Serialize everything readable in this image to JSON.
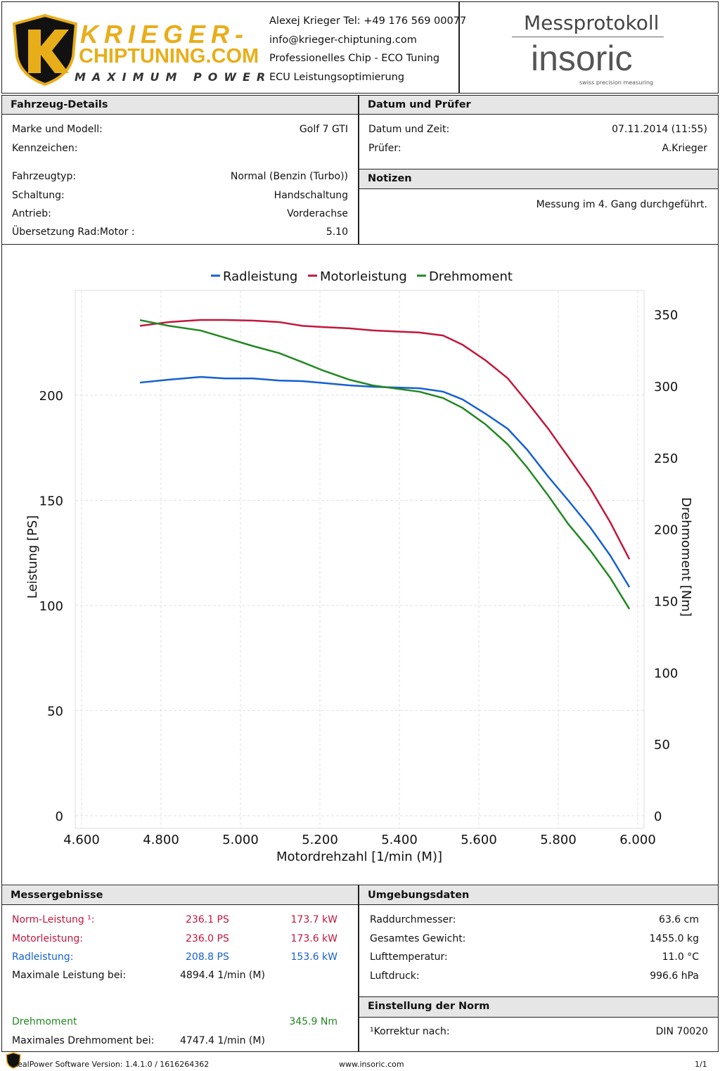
{
  "header": {
    "brand_line1": "KRIEGER-",
    "brand_line2": "CHIPTUNING.COM",
    "brand_slogan": "MAXIMUM POWER",
    "contact": [
      "Alexej Krieger Tel: +49 176 569 00077",
      "info@krieger-chiptuning.com",
      "Professionelles Chip - ECO Tuning",
      "ECU Leistungsoptimierung"
    ],
    "doc_title": "Messprotokoll",
    "vendor_logo": "insoric",
    "vendor_tagline": "swiss precision measuring"
  },
  "vehicle": {
    "title": "Fahrzeug-Details",
    "rows": [
      {
        "label": "Marke und Modell:",
        "value": "Golf 7 GTI"
      },
      {
        "label": "Kennzeichen:",
        "value": ""
      },
      {
        "label": "Fahrzeugtyp:",
        "value": "Normal (Benzin (Turbo))"
      },
      {
        "label": "Schaltung:",
        "value": "Handschaltung"
      },
      {
        "label": "Antrieb:",
        "value": "Vorderachse"
      },
      {
        "label": "Übersetzung Rad:Motor :",
        "value": "5.10"
      }
    ]
  },
  "date": {
    "title": "Datum und Prüfer",
    "rows": [
      {
        "label": "Datum und Zeit:",
        "value": "07.11.2014 (11:55)"
      },
      {
        "label": "Prüfer:",
        "value": "A.Krieger"
      }
    ]
  },
  "notes": {
    "title": "Notizen",
    "text": "Messung im 4. Gang durchgeführt."
  },
  "chart_data": {
    "type": "line",
    "xlabel": "Motordrehzahl [1/min (M)]",
    "ylabel": "Leistung [PS]",
    "y2label": "Drehmoment [Nm]",
    "xlim": [
      4600,
      6000
    ],
    "ylim": [
      0,
      255
    ],
    "y2lim": [
      0,
      372
    ],
    "xticks": [
      "4.600",
      "4.800",
      "5.000",
      "5.200",
      "5.400",
      "5.600",
      "5.800",
      "6.000"
    ],
    "xtick_values": [
      4600,
      4800,
      5000,
      5200,
      5400,
      5600,
      5800,
      6000
    ],
    "yticks": [
      0,
      50,
      100,
      150,
      200
    ],
    "y2ticks": [
      0,
      50,
      100,
      150,
      200,
      250,
      300,
      350
    ],
    "legend_placement": "top-center",
    "grid": true,
    "x": [
      4747,
      4820,
      4900,
      4960,
      5030,
      5097,
      5156,
      5209,
      5274,
      5333,
      5451,
      5510,
      5559,
      5616,
      5673,
      5722,
      5775,
      5825,
      5881,
      5931,
      5979
    ],
    "series": [
      {
        "name": "Radleistung",
        "axis": "left",
        "color": "#1560d0",
        "values": [
          206,
          207.4,
          208.7,
          208,
          208,
          207,
          206.7,
          205.8,
          204.7,
          204,
          203.3,
          201.7,
          198,
          191.3,
          184,
          174,
          161.2,
          150,
          137,
          123.7,
          108.7
        ]
      },
      {
        "name": "Motorleistung",
        "axis": "left",
        "color": "#c0183c",
        "values": [
          233,
          234.8,
          235.8,
          235.8,
          235.5,
          234.8,
          233,
          232.4,
          231.8,
          230.8,
          229.8,
          228.4,
          224,
          216.7,
          208,
          196.7,
          184,
          170.6,
          155.5,
          139.5,
          122
        ]
      },
      {
        "name": "Drehmoment",
        "axis": "right",
        "color": "#228822",
        "values": [
          346,
          342,
          338.7,
          333.8,
          328,
          323,
          316.6,
          310.7,
          304.4,
          300.4,
          296,
          291.6,
          284.7,
          273.4,
          259.2,
          243,
          223.4,
          203.7,
          185,
          166,
          144.3
        ]
      }
    ]
  },
  "results": {
    "title": "Messergebnisse",
    "rows": [
      {
        "label": "Norm-Leistung ¹:",
        "ps": "236.1 PS",
        "kw": "173.7 kW",
        "cls": "red"
      },
      {
        "label": "Motorleistung:",
        "ps": "236.0 PS",
        "kw": "173.6 kW",
        "cls": "red"
      },
      {
        "label": "Radleistung:",
        "ps": "208.8 PS",
        "kw": "153.6 kW",
        "cls": "blue"
      }
    ],
    "max_power_label": "Maximale Leistung bei:",
    "max_power_value": "4894.4 1/min (M)",
    "torque_label": "Drehmoment",
    "torque_value": "345.9 Nm",
    "max_torque_label": "Maximales Drehmoment bei:",
    "max_torque_value": "4747.4 1/min (M)"
  },
  "environment": {
    "title": "Umgebungsdaten",
    "rows": [
      {
        "label": "Raddurchmesser:",
        "value": "63.6 cm"
      },
      {
        "label": "Gesamtes Gewicht:",
        "value": "1455.0 kg"
      },
      {
        "label": "Lufttemperatur:",
        "value": "11.0 °C"
      },
      {
        "label": "Luftdruck:",
        "value": "996.6 hPa"
      }
    ]
  },
  "norm": {
    "title": "Einstellung der Norm",
    "label": "¹Korrektur nach:",
    "value": "DIN 70020"
  },
  "footer": {
    "software": "RealPower Software Version: 1.4.1.0 / 1616264362",
    "url": "www.insoric.com",
    "page": "1/1"
  }
}
